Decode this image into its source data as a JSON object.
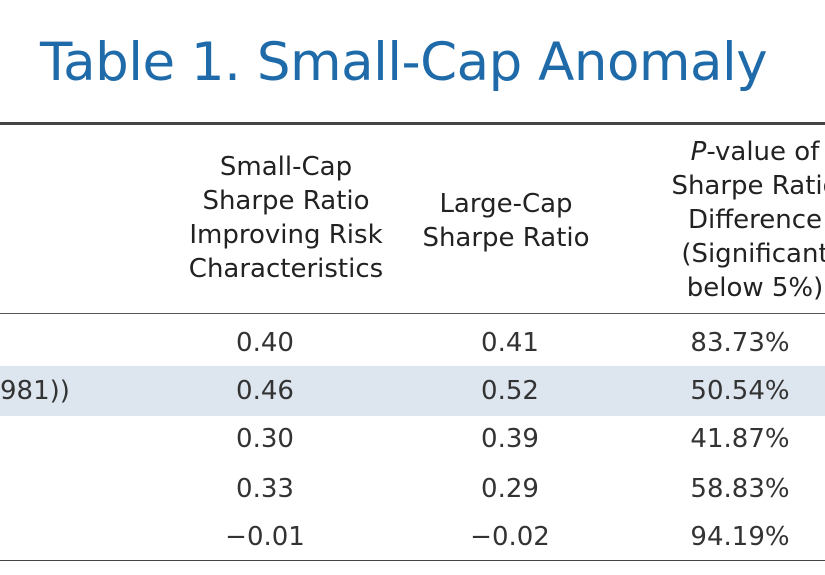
{
  "title": "Table 1. Small-Cap Anomaly",
  "headers": {
    "col1": [
      "Small-Cap",
      "Sharpe Ratio",
      "Improving Risk",
      "Characteristics"
    ],
    "col2": [
      "Large-Cap",
      "Sharpe Ratio"
    ],
    "col3_italic": "P",
    "col3_first_rest": "-value of",
    "col3": [
      "Sharpe Ratio",
      "Difference",
      "(Significant",
      "below 5%)"
    ]
  },
  "rows": [
    {
      "label": "",
      "small": "0.40",
      "large": "0.41",
      "p": "83.73%",
      "shaded": false
    },
    {
      "label": "981))",
      "small": "0.46",
      "large": "0.52",
      "p": "50.54%",
      "shaded": true
    },
    {
      "label": "",
      "small": "0.30",
      "large": "0.39",
      "p": "41.87%",
      "shaded": false
    },
    {
      "label": "",
      "small": "0.33",
      "large": "0.29",
      "p": "58.83%",
      "shaded": false
    },
    {
      "label": "",
      "small": "−0.01",
      "large": "−0.02",
      "p": "94.19%",
      "shaded": false
    }
  ]
}
